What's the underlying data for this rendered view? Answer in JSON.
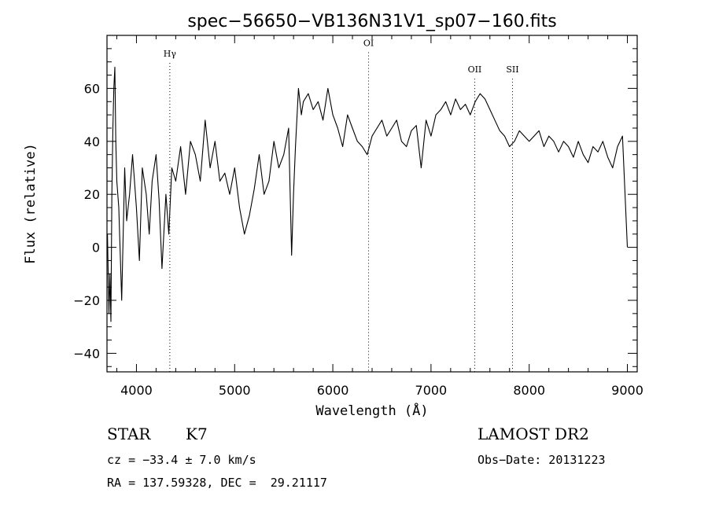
{
  "chart_data": {
    "type": "line",
    "title": "spec−56650−VB136N31V1_sp07−160.fits",
    "xlabel": "Wavelength (Å)",
    "ylabel": "Flux (relative)",
    "xlim": [
      3700,
      9100
    ],
    "ylim": [
      -47,
      80
    ],
    "x_ticks": [
      4000,
      5000,
      6000,
      7000,
      8000,
      9000
    ],
    "y_ticks": [
      -40,
      -20,
      0,
      20,
      40,
      60
    ],
    "x_tick_labels": [
      "4000",
      "5000",
      "6000",
      "7000",
      "8000",
      "9000"
    ],
    "y_tick_labels": [
      "−40",
      "−20",
      "0",
      "20",
      "40",
      "60"
    ],
    "grid": false,
    "line_color": "#000000",
    "annotations": [
      {
        "label": "Hγ",
        "x": 4340,
        "label_y": 72
      },
      {
        "label": "OI",
        "x": 6364,
        "label_y": 76
      },
      {
        "label": "OII",
        "x": 7445,
        "label_y": 66
      },
      {
        "label": "SII",
        "x": 7830,
        "label_y": 66
      }
    ],
    "series": [
      {
        "x": [
          3705,
          3720,
          3730,
          3740,
          3750,
          3760,
          3770,
          3780,
          3790,
          3800,
          3820,
          3850,
          3880,
          3900,
          3930,
          3960,
          4000,
          4030,
          4060,
          4100,
          4130,
          4160,
          4200,
          4230,
          4260,
          4300,
          4330,
          4360,
          4400,
          4450,
          4500,
          4550,
          4600,
          4650,
          4700,
          4750,
          4800,
          4850,
          4900,
          4950,
          5000,
          5050,
          5100,
          5150,
          5200,
          5250,
          5300,
          5350,
          5400,
          5450,
          5500,
          5550,
          5580,
          5600,
          5620,
          5650,
          5680,
          5700,
          5750,
          5800,
          5850,
          5900,
          5950,
          6000,
          6050,
          6100,
          6150,
          6200,
          6250,
          6300,
          6350,
          6400,
          6450,
          6500,
          6550,
          6600,
          6650,
          6700,
          6750,
          6800,
          6850,
          6900,
          6950,
          7000,
          7050,
          7100,
          7150,
          7200,
          7250,
          7300,
          7350,
          7400,
          7450,
          7500,
          7550,
          7600,
          7650,
          7700,
          7750,
          7800,
          7850,
          7900,
          7950,
          8000,
          8050,
          8100,
          8150,
          8200,
          8250,
          8300,
          8350,
          8400,
          8450,
          8500,
          8550,
          8600,
          8650,
          8700,
          8750,
          8800,
          8850,
          8900,
          8950,
          9000
        ],
        "y": [
          5,
          -25,
          -10,
          -28,
          20,
          45,
          60,
          68,
          40,
          25,
          15,
          -20,
          30,
          10,
          20,
          35,
          15,
          -5,
          30,
          20,
          5,
          25,
          35,
          18,
          -8,
          20,
          5,
          30,
          25,
          38,
          20,
          40,
          35,
          25,
          48,
          30,
          40,
          25,
          28,
          20,
          30,
          15,
          5,
          12,
          22,
          35,
          20,
          25,
          40,
          30,
          35,
          45,
          -3,
          20,
          38,
          60,
          50,
          55,
          58,
          52,
          55,
          48,
          60,
          50,
          45,
          38,
          50,
          45,
          40,
          38,
          35,
          42,
          45,
          48,
          42,
          45,
          48,
          40,
          38,
          44,
          46,
          30,
          48,
          42,
          50,
          52,
          55,
          50,
          56,
          52,
          54,
          50,
          55,
          58,
          56,
          52,
          48,
          44,
          42,
          38,
          40,
          44,
          42,
          40,
          42,
          44,
          38,
          42,
          40,
          36,
          40,
          38,
          34,
          40,
          35,
          32,
          38,
          36,
          40,
          34,
          30,
          38,
          42,
          0
        ]
      }
    ]
  },
  "footer": {
    "object_class": "STAR",
    "subclass": "K7",
    "survey": "LAMOST DR2",
    "redshift": "cz = −33.4 ± 7.0 km/s",
    "obs_date": "Obs−Date: 20131223",
    "coords": "RA = 137.59328, DEC =  29.21117"
  }
}
